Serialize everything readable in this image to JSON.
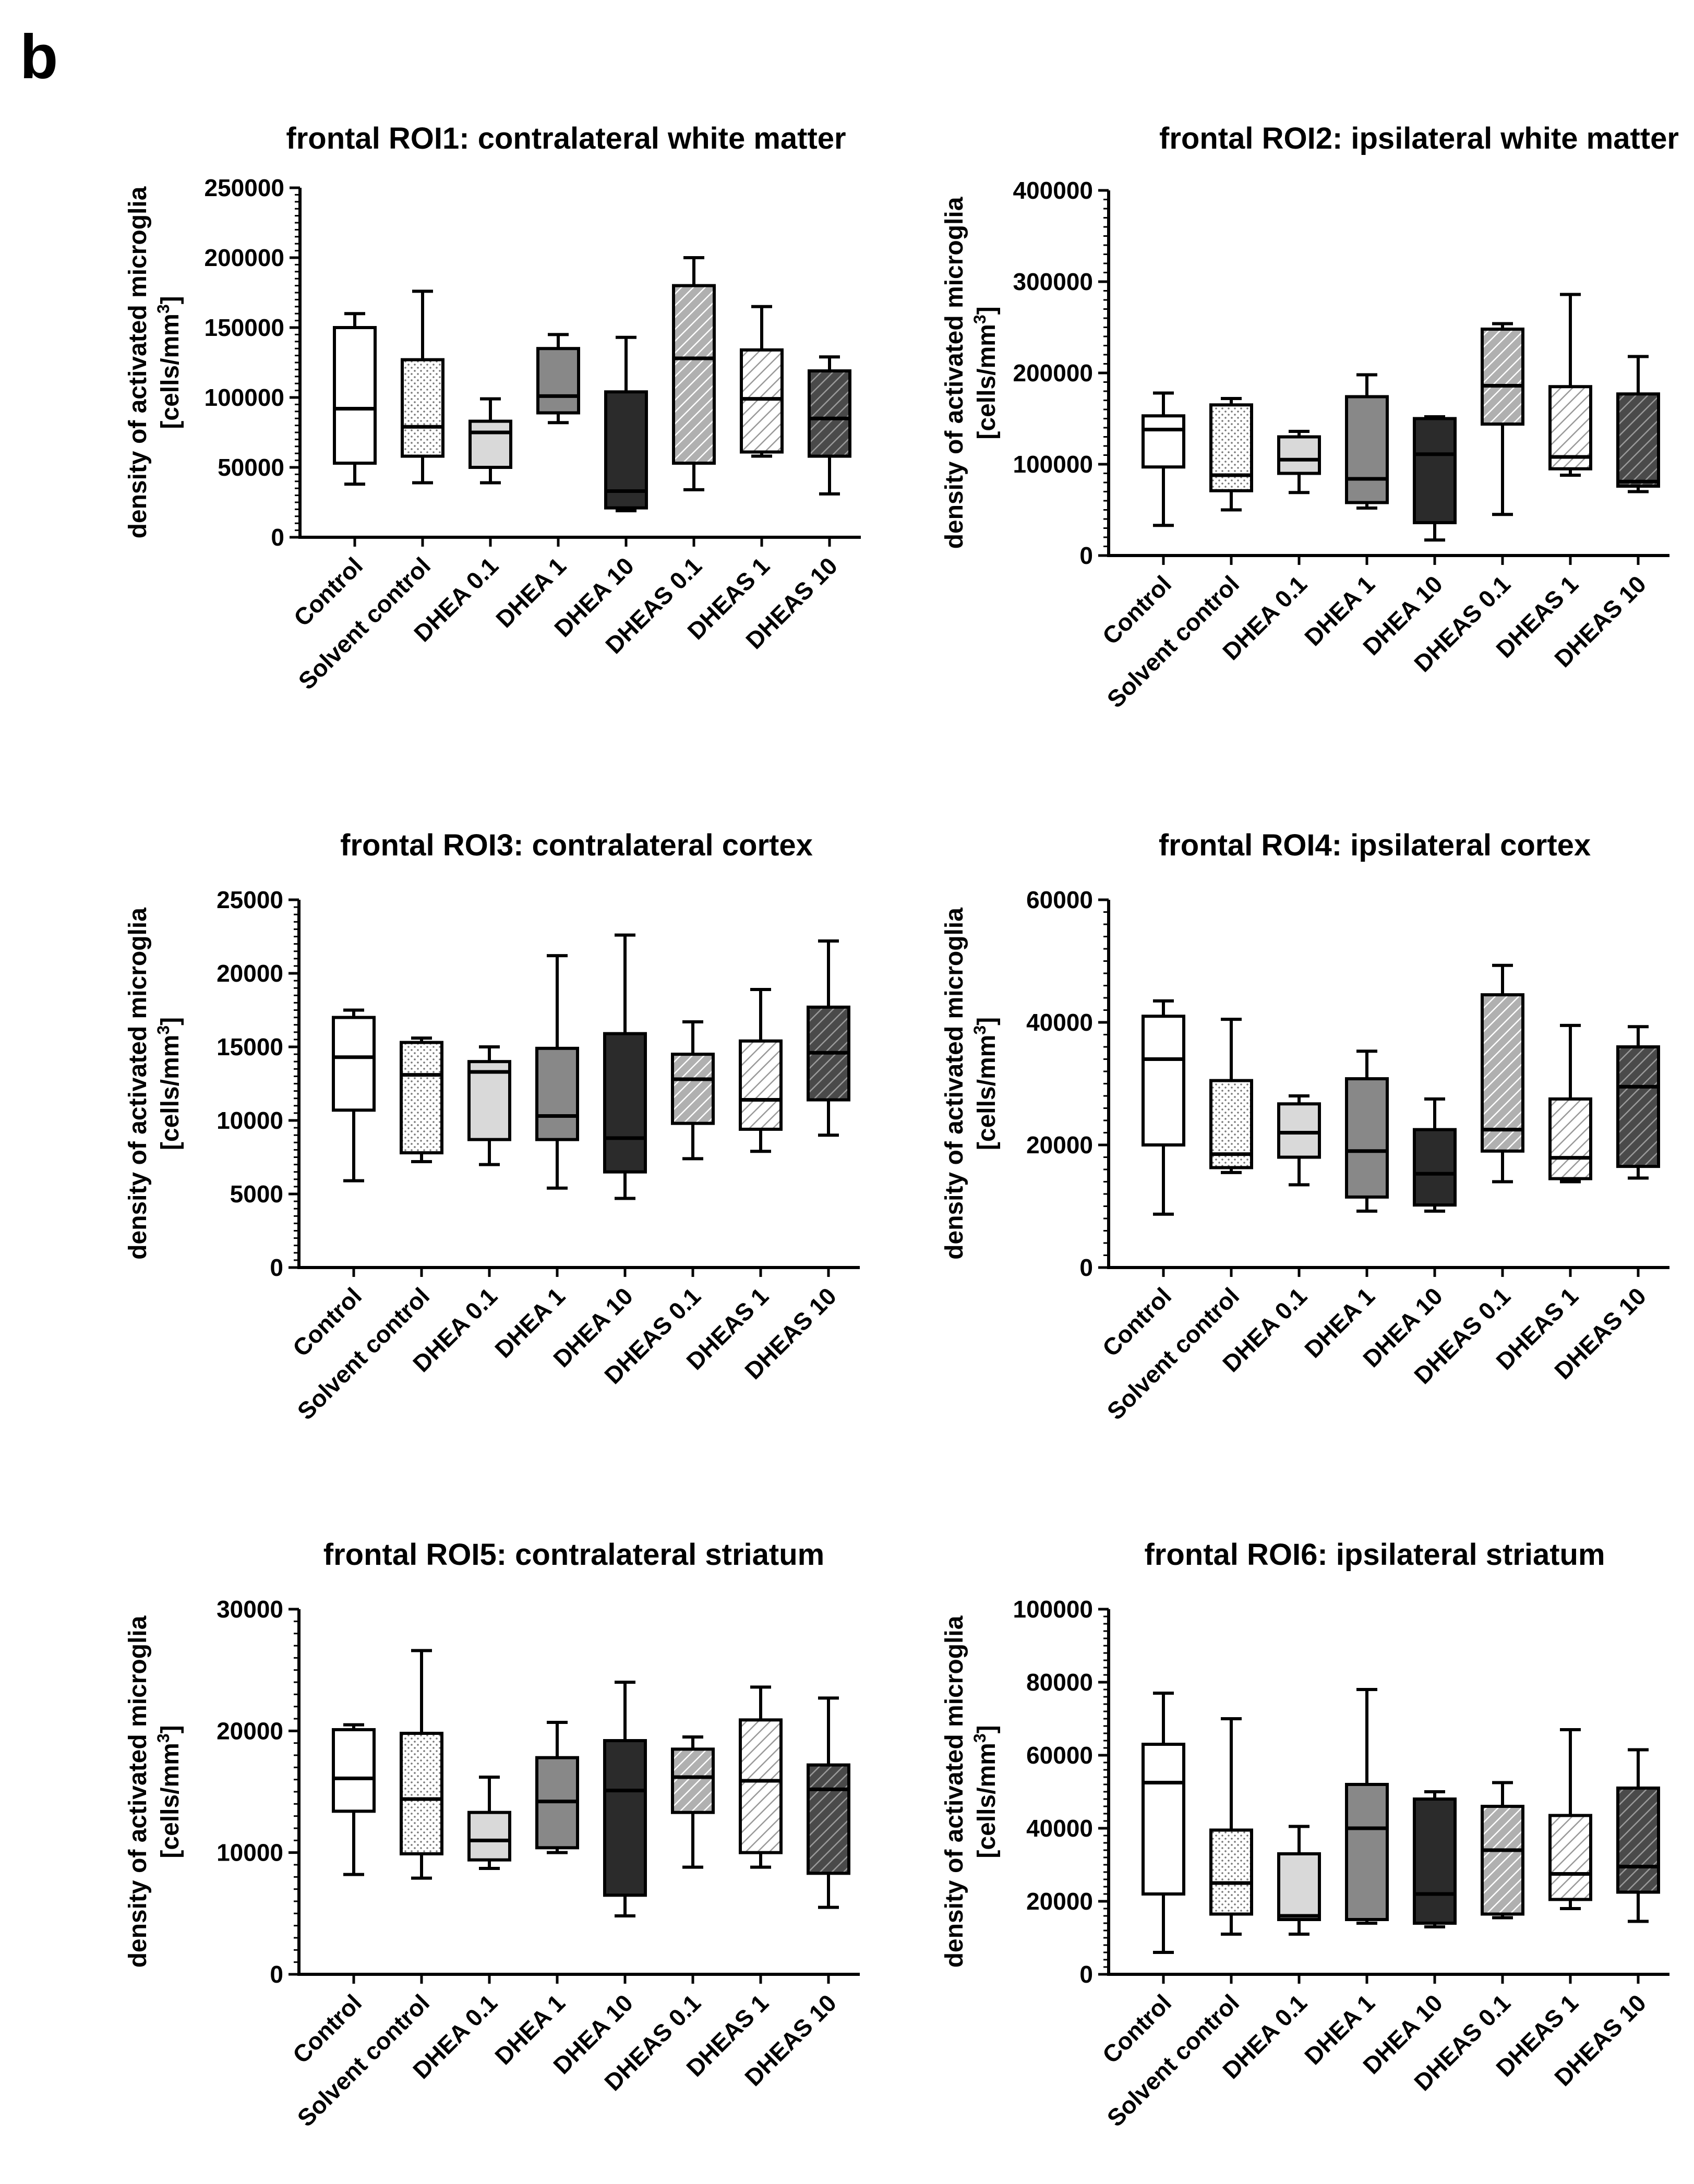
{
  "panel_label": "b",
  "chart_data": [
    {
      "type": "boxplot",
      "title": "frontal ROI1: contralateral white matter",
      "ylabel": [
        "density of activated microglia",
        "[cells/mm",
        "3",
        "]"
      ],
      "ylim": [
        0,
        250000
      ],
      "yticks": [
        "0",
        "50000",
        "100000",
        "150000",
        "200000",
        "250000"
      ],
      "categories": [
        "Control",
        "Solvent control",
        "DHEA 0.1",
        "DHEA 1",
        "DHEA 10",
        "DHEAS 0.1",
        "DHEAS 1",
        "DHEAS 10"
      ],
      "boxes": [
        {
          "min": 38000,
          "q1": 53000,
          "median": 92000,
          "q3": 150000,
          "max": 160000
        },
        {
          "min": 39000,
          "q1": 58000,
          "median": 79000,
          "q3": 127000,
          "max": 176000
        },
        {
          "min": 39000,
          "q1": 50000,
          "median": 75000,
          "q3": 83000,
          "max": 99000
        },
        {
          "min": 82000,
          "q1": 89000,
          "median": 101000,
          "q3": 135000,
          "max": 145000
        },
        {
          "min": 19000,
          "q1": 21000,
          "median": 33000,
          "q3": 104000,
          "max": 143000
        },
        {
          "min": 34000,
          "q1": 53000,
          "median": 128000,
          "q3": 180000,
          "max": 200000
        },
        {
          "min": 58000,
          "q1": 61000,
          "median": 99000,
          "q3": 134000,
          "max": 165000
        },
        {
          "min": 31000,
          "q1": 58000,
          "median": 85000,
          "q3": 119000,
          "max": 129000
        }
      ]
    },
    {
      "type": "boxplot",
      "title": "frontal ROI2: ipsilateral white matter",
      "ylabel": [
        "density of activated microglia",
        "[cells/mm",
        "3",
        "]"
      ],
      "ylim": [
        0,
        400000
      ],
      "yticks": [
        "0",
        "100000",
        "200000",
        "300000",
        "400000"
      ],
      "categories": [
        "Control",
        "Solvent control",
        "DHEA 0.1",
        "DHEA 1",
        "DHEA 10",
        "DHEAS 0.1",
        "DHEAS 1",
        "DHEAS 10"
      ],
      "boxes": [
        {
          "min": 33000,
          "q1": 97000,
          "median": 138000,
          "q3": 153000,
          "max": 178000
        },
        {
          "min": 50000,
          "q1": 71000,
          "median": 88000,
          "q3": 165000,
          "max": 172000
        },
        {
          "min": 69000,
          "q1": 90000,
          "median": 105000,
          "q3": 130000,
          "max": 136000
        },
        {
          "min": 52000,
          "q1": 58000,
          "median": 84000,
          "q3": 174000,
          "max": 198000
        },
        {
          "min": 17000,
          "q1": 36000,
          "median": 111000,
          "q3": 150000,
          "max": 152000
        },
        {
          "min": 45000,
          "q1": 144000,
          "median": 186000,
          "q3": 248000,
          "max": 254000
        },
        {
          "min": 88000,
          "q1": 95000,
          "median": 108000,
          "q3": 185000,
          "max": 286000
        },
        {
          "min": 70000,
          "q1": 76000,
          "median": 81000,
          "q3": 177000,
          "max": 218000
        }
      ]
    },
    {
      "type": "boxplot",
      "title": "frontal ROI3: contralateral cortex",
      "ylabel": [
        "density of activated microglia",
        "[cells/mm",
        "3",
        "]"
      ],
      "ylim": [
        0,
        25000
      ],
      "yticks": [
        "0",
        "5000",
        "10000",
        "15000",
        "20000",
        "25000"
      ],
      "categories": [
        "Control",
        "Solvent control",
        "DHEA 0.1",
        "DHEA 1",
        "DHEA 10",
        "DHEAS 0.1",
        "DHEAS 1",
        "DHEAS 10"
      ],
      "boxes": [
        {
          "min": 5900,
          "q1": 10700,
          "median": 14300,
          "q3": 17000,
          "max": 17500
        },
        {
          "min": 7200,
          "q1": 7800,
          "median": 13100,
          "q3": 15300,
          "max": 15600
        },
        {
          "min": 7000,
          "q1": 8700,
          "median": 13300,
          "q3": 14000,
          "max": 15000
        },
        {
          "min": 5400,
          "q1": 8700,
          "median": 10300,
          "q3": 14900,
          "max": 21200
        },
        {
          "min": 4700,
          "q1": 6500,
          "median": 8800,
          "q3": 15900,
          "max": 22600
        },
        {
          "min": 7400,
          "q1": 9800,
          "median": 12800,
          "q3": 14500,
          "max": 16700
        },
        {
          "min": 7900,
          "q1": 9400,
          "median": 11400,
          "q3": 15400,
          "max": 18900
        },
        {
          "min": 9000,
          "q1": 11400,
          "median": 14600,
          "q3": 17700,
          "max": 22200
        }
      ]
    },
    {
      "type": "boxplot",
      "title": "frontal ROI4: ipsilateral cortex",
      "ylabel": [
        "density of activated microglia",
        "[cells/mm",
        "3",
        "]"
      ],
      "ylim": [
        0,
        60000
      ],
      "yticks": [
        "0",
        "20000",
        "40000",
        "60000"
      ],
      "categories": [
        "Control",
        "Solvent control",
        "DHEA 0.1",
        "DHEA 1",
        "DHEA 10",
        "DHEAS 0.1",
        "DHEAS 1",
        "DHEAS 10"
      ],
      "boxes": [
        {
          "min": 8700,
          "q1": 20000,
          "median": 34000,
          "q3": 41000,
          "max": 43500
        },
        {
          "min": 15500,
          "q1": 16300,
          "median": 18500,
          "q3": 30500,
          "max": 40500
        },
        {
          "min": 13500,
          "q1": 18000,
          "median": 22000,
          "q3": 26700,
          "max": 28000
        },
        {
          "min": 9200,
          "q1": 11500,
          "median": 19000,
          "q3": 30800,
          "max": 35300
        },
        {
          "min": 9200,
          "q1": 10200,
          "median": 15300,
          "q3": 22500,
          "max": 27500
        },
        {
          "min": 14000,
          "q1": 19000,
          "median": 22500,
          "q3": 44500,
          "max": 49300
        },
        {
          "min": 14000,
          "q1": 14500,
          "median": 17900,
          "q3": 27500,
          "max": 39500
        },
        {
          "min": 14600,
          "q1": 16500,
          "median": 29500,
          "q3": 36000,
          "max": 39300
        }
      ]
    },
    {
      "type": "boxplot",
      "title": "frontal ROI5: contralateral striatum",
      "ylabel": [
        "density of activated microglia",
        "[cells/mm",
        "3",
        "]"
      ],
      "ylim": [
        0,
        30000
      ],
      "yticks": [
        "0",
        "10000",
        "20000",
        "30000"
      ],
      "categories": [
        "Control",
        "Solvent control",
        "DHEA 0.1",
        "DHEA 1",
        "DHEA 10",
        "DHEAS 0.1",
        "DHEAS 1",
        "DHEAS 10"
      ],
      "boxes": [
        {
          "min": 8200,
          "q1": 13400,
          "median": 16100,
          "q3": 20100,
          "max": 20500
        },
        {
          "min": 7900,
          "q1": 9900,
          "median": 14400,
          "q3": 19800,
          "max": 26600
        },
        {
          "min": 8700,
          "q1": 9400,
          "median": 11000,
          "q3": 13300,
          "max": 16200
        },
        {
          "min": 10000,
          "q1": 10400,
          "median": 14200,
          "q3": 17800,
          "max": 20700
        },
        {
          "min": 4800,
          "q1": 6500,
          "median": 15100,
          "q3": 19200,
          "max": 24000
        },
        {
          "min": 8800,
          "q1": 13300,
          "median": 16200,
          "q3": 18500,
          "max": 19500
        },
        {
          "min": 8800,
          "q1": 10000,
          "median": 15900,
          "q3": 20900,
          "max": 23600
        },
        {
          "min": 5500,
          "q1": 8300,
          "median": 15200,
          "q3": 17200,
          "max": 22700
        }
      ]
    },
    {
      "type": "boxplot",
      "title": "frontal ROI6: ipsilateral striatum",
      "ylabel": [
        "density of activated microglia",
        "[cells/mm",
        "3",
        "]"
      ],
      "ylim": [
        0,
        100000
      ],
      "yticks": [
        "0",
        "20000",
        "40000",
        "60000",
        "80000",
        "100000"
      ],
      "categories": [
        "Control",
        "Solvent control",
        "DHEA 0.1",
        "DHEA 1",
        "DHEA 10",
        "DHEAS 0.1",
        "DHEAS 1",
        "DHEAS 10"
      ],
      "boxes": [
        {
          "min": 6000,
          "q1": 22000,
          "median": 52500,
          "q3": 63000,
          "max": 77000
        },
        {
          "min": 11000,
          "q1": 16500,
          "median": 25000,
          "q3": 39500,
          "max": 70000
        },
        {
          "min": 11000,
          "q1": 15000,
          "median": 16000,
          "q3": 33000,
          "max": 40500
        },
        {
          "min": 14000,
          "q1": 15000,
          "median": 40000,
          "q3": 52000,
          "max": 78000
        },
        {
          "min": 13000,
          "q1": 14000,
          "median": 22000,
          "q3": 48000,
          "max": 50000
        },
        {
          "min": 15500,
          "q1": 16500,
          "median": 34000,
          "q3": 46000,
          "max": 52500
        },
        {
          "min": 18000,
          "q1": 20500,
          "median": 27500,
          "q3": 43500,
          "max": 67000
        },
        {
          "min": 14500,
          "q1": 22500,
          "median": 29500,
          "q3": 51000,
          "max": 61500
        }
      ]
    }
  ],
  "group_styles": [
    {
      "fill": "#ffffff",
      "pattern": "none"
    },
    {
      "fill": "#ffffff",
      "pattern": "dots"
    },
    {
      "fill": "#d9d9d9",
      "pattern": "none"
    },
    {
      "fill": "#888888",
      "pattern": "none"
    },
    {
      "fill": "#2b2b2b",
      "pattern": "none"
    },
    {
      "fill": "#b0b0b0",
      "pattern": "hatch-dark"
    },
    {
      "fill": "#ffffff",
      "pattern": "hatch-light"
    },
    {
      "fill": "#4a4a4a",
      "pattern": "hatch-dark"
    }
  ]
}
